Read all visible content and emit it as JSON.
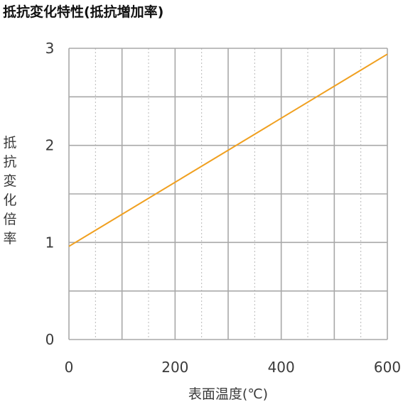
{
  "title": "抵抗変化特性(抵抗増加率)",
  "chart_data": {
    "type": "line",
    "title": "抵抗変化特性(抵抗増加率)",
    "xlabel": "表面温度(℃)",
    "ylabel": "抵抗変化倍率",
    "xlim": [
      0,
      600
    ],
    "ylim": [
      0,
      3
    ],
    "xticks": [
      "0",
      "200",
      "400",
      "600"
    ],
    "yticks": [
      "0",
      "1",
      "2",
      "3"
    ],
    "grid": true,
    "series": [
      {
        "color": "#f0a020",
        "x": [
          0,
          600
        ],
        "y": [
          0.96,
          2.94
        ]
      }
    ]
  }
}
